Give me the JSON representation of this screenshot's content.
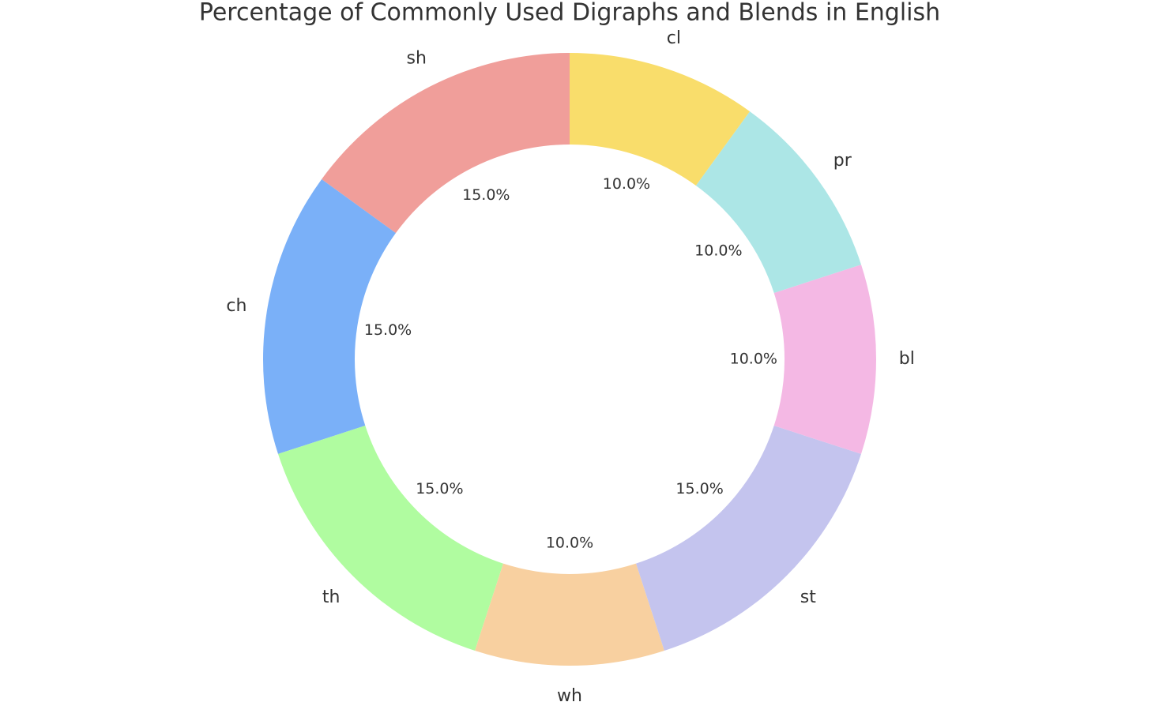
{
  "chart_data": {
    "type": "donut",
    "title": "Percentage of Commonly Used Digraphs and Blends in English",
    "categories": [
      "sh",
      "ch",
      "th",
      "wh",
      "st",
      "bl",
      "pr",
      "cl"
    ],
    "values": [
      15,
      15,
      15,
      10,
      15,
      10,
      10,
      10
    ],
    "value_labels": [
      "15.0%",
      "15.0%",
      "15.0%",
      "10.0%",
      "15.0%",
      "10.0%",
      "10.0%",
      "10.0%"
    ],
    "colors": [
      "#f09e9a",
      "#7ab0f8",
      "#b0fca0",
      "#f8d0a0",
      "#c4c4ee",
      "#f4b8e4",
      "#ace6e6",
      "#f9dd6b"
    ]
  }
}
